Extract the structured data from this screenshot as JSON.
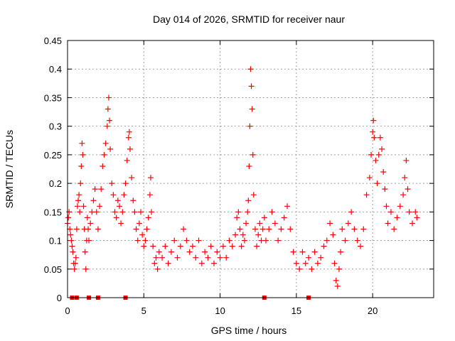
{
  "chart_data": {
    "type": "scatter",
    "title": "Day 014 of 2026, SRMTID for receiver naur",
    "xlabel": "GPS time / hours",
    "ylabel": "SRMTID / TECUs",
    "xlim": [
      0,
      24
    ],
    "ylim": [
      0,
      0.45
    ],
    "x_ticks": [
      0,
      5,
      10,
      15,
      20
    ],
    "x_tick_labels": [
      "0",
      "5",
      "10",
      "15",
      "20"
    ],
    "y_ticks": [
      0,
      0.05,
      0.1,
      0.15,
      0.2,
      0.25,
      0.3,
      0.35,
      0.4,
      0.45
    ],
    "y_tick_labels": [
      "0",
      "0.05",
      "0.1",
      "0.15",
      "0.2",
      "0.25",
      "0.3",
      "0.35",
      "0.4",
      "0.45"
    ],
    "grid": true,
    "marker": "+",
    "color": "#ff0000",
    "series": [
      {
        "name": "SRMTID",
        "points": [
          [
            0.0,
            0.13
          ],
          [
            0.05,
            0.14
          ],
          [
            0.1,
            0.15
          ],
          [
            0.15,
            0.12
          ],
          [
            0.2,
            0.11
          ],
          [
            0.25,
            0.1
          ],
          [
            0.3,
            0.09
          ],
          [
            0.35,
            0.08
          ],
          [
            0.4,
            0.06
          ],
          [
            0.45,
            0.05
          ],
          [
            0.5,
            0.06
          ],
          [
            0.55,
            0.07
          ],
          [
            0.6,
            0.12
          ],
          [
            0.65,
            0.16
          ],
          [
            0.7,
            0.17
          ],
          [
            0.75,
            0.18
          ],
          [
            0.8,
            0.15
          ],
          [
            0.85,
            0.2
          ],
          [
            0.9,
            0.23
          ],
          [
            0.95,
            0.27
          ],
          [
            1.0,
            0.25
          ],
          [
            1.05,
            0.16
          ],
          [
            1.1,
            0.12
          ],
          [
            1.15,
            0.08
          ],
          [
            1.2,
            0.05
          ],
          [
            1.25,
            0.1
          ],
          [
            1.3,
            0.14
          ],
          [
            1.35,
            0.12
          ],
          [
            1.4,
            0.1
          ],
          [
            1.5,
            0.13
          ],
          [
            1.6,
            0.15
          ],
          [
            1.7,
            0.17
          ],
          [
            1.8,
            0.19
          ],
          [
            1.9,
            0.15
          ],
          [
            2.0,
            0.12
          ],
          [
            2.1,
            0.16
          ],
          [
            2.2,
            0.19
          ],
          [
            2.3,
            0.23
          ],
          [
            2.4,
            0.25
          ],
          [
            2.5,
            0.27
          ],
          [
            2.6,
            0.3
          ],
          [
            2.65,
            0.33
          ],
          [
            2.7,
            0.35
          ],
          [
            2.75,
            0.31
          ],
          [
            2.8,
            0.26
          ],
          [
            2.9,
            0.2
          ],
          [
            3.0,
            0.18
          ],
          [
            3.1,
            0.15
          ],
          [
            3.2,
            0.14
          ],
          [
            3.3,
            0.17
          ],
          [
            3.4,
            0.16
          ],
          [
            3.5,
            0.13
          ],
          [
            3.6,
            0.15
          ],
          [
            3.7,
            0.18
          ],
          [
            3.8,
            0.2
          ],
          [
            3.9,
            0.24
          ],
          [
            4.0,
            0.28
          ],
          [
            4.05,
            0.29
          ],
          [
            4.1,
            0.26
          ],
          [
            4.2,
            0.21
          ],
          [
            4.3,
            0.17
          ],
          [
            4.4,
            0.15
          ],
          [
            4.5,
            0.12
          ],
          [
            4.6,
            0.1
          ],
          [
            4.7,
            0.13
          ],
          [
            4.8,
            0.15
          ],
          [
            4.9,
            0.11
          ],
          [
            5.0,
            0.09
          ],
          [
            5.1,
            0.1
          ],
          [
            5.2,
            0.12
          ],
          [
            5.3,
            0.14
          ],
          [
            5.4,
            0.18
          ],
          [
            5.45,
            0.21
          ],
          [
            5.5,
            0.15
          ],
          [
            5.6,
            0.09
          ],
          [
            5.7,
            0.06
          ],
          [
            5.8,
            0.07
          ],
          [
            5.9,
            0.05
          ],
          [
            6.0,
            0.08
          ],
          [
            6.2,
            0.07
          ],
          [
            6.4,
            0.09
          ],
          [
            6.6,
            0.06
          ],
          [
            6.8,
            0.08
          ],
          [
            7.0,
            0.1
          ],
          [
            7.2,
            0.07
          ],
          [
            7.4,
            0.09
          ],
          [
            7.6,
            0.12
          ],
          [
            7.8,
            0.1
          ],
          [
            8.0,
            0.08
          ],
          [
            8.2,
            0.09
          ],
          [
            8.4,
            0.07
          ],
          [
            8.6,
            0.1
          ],
          [
            8.8,
            0.06
          ],
          [
            9.0,
            0.08
          ],
          [
            9.2,
            0.07
          ],
          [
            9.4,
            0.09
          ],
          [
            9.6,
            0.06
          ],
          [
            9.8,
            0.08
          ],
          [
            10.0,
            0.07
          ],
          [
            10.2,
            0.09
          ],
          [
            10.4,
            0.07
          ],
          [
            10.6,
            0.1
          ],
          [
            10.8,
            0.09
          ],
          [
            11.0,
            0.11
          ],
          [
            11.1,
            0.14
          ],
          [
            11.2,
            0.15
          ],
          [
            11.3,
            0.12
          ],
          [
            11.4,
            0.09
          ],
          [
            11.5,
            0.11
          ],
          [
            11.6,
            0.1
          ],
          [
            11.7,
            0.13
          ],
          [
            11.8,
            0.15
          ],
          [
            11.85,
            0.17
          ],
          [
            11.9,
            0.23
          ],
          [
            11.95,
            0.3
          ],
          [
            12.0,
            0.4
          ],
          [
            12.05,
            0.37
          ],
          [
            12.1,
            0.33
          ],
          [
            12.15,
            0.25
          ],
          [
            12.2,
            0.18
          ],
          [
            12.3,
            0.12
          ],
          [
            12.4,
            0.09
          ],
          [
            12.5,
            0.11
          ],
          [
            12.6,
            0.13
          ],
          [
            12.7,
            0.1
          ],
          [
            12.8,
            0.12
          ],
          [
            12.9,
            0.14
          ],
          [
            13.0,
            0.1
          ],
          [
            13.2,
            0.12
          ],
          [
            13.4,
            0.15
          ],
          [
            13.6,
            0.13
          ],
          [
            13.8,
            0.1
          ],
          [
            14.0,
            0.12
          ],
          [
            14.2,
            0.14
          ],
          [
            14.4,
            0.16
          ],
          [
            14.6,
            0.12
          ],
          [
            14.8,
            0.08
          ],
          [
            15.0,
            0.06
          ],
          [
            15.2,
            0.05
          ],
          [
            15.4,
            0.08
          ],
          [
            15.6,
            0.06
          ],
          [
            15.8,
            0.07
          ],
          [
            16.0,
            0.05
          ],
          [
            16.2,
            0.08
          ],
          [
            16.4,
            0.06
          ],
          [
            16.6,
            0.07
          ],
          [
            16.8,
            0.09
          ],
          [
            17.0,
            0.1
          ],
          [
            17.2,
            0.13
          ],
          [
            17.4,
            0.11
          ],
          [
            17.5,
            0.06
          ],
          [
            17.6,
            0.03
          ],
          [
            17.7,
            0.02
          ],
          [
            17.8,
            0.05
          ],
          [
            17.9,
            0.08
          ],
          [
            18.0,
            0.12
          ],
          [
            18.2,
            0.1
          ],
          [
            18.4,
            0.13
          ],
          [
            18.6,
            0.15
          ],
          [
            18.8,
            0.12
          ],
          [
            19.0,
            0.1
          ],
          [
            19.2,
            0.09
          ],
          [
            19.4,
            0.12
          ],
          [
            19.6,
            0.18
          ],
          [
            19.8,
            0.21
          ],
          [
            19.9,
            0.25
          ],
          [
            20.0,
            0.29
          ],
          [
            20.05,
            0.31
          ],
          [
            20.1,
            0.28
          ],
          [
            20.2,
            0.24
          ],
          [
            20.3,
            0.2
          ],
          [
            20.4,
            0.25
          ],
          [
            20.5,
            0.28
          ],
          [
            20.6,
            0.26
          ],
          [
            20.7,
            0.22
          ],
          [
            20.8,
            0.19
          ],
          [
            20.9,
            0.16
          ],
          [
            21.0,
            0.13
          ],
          [
            21.2,
            0.15
          ],
          [
            21.4,
            0.12
          ],
          [
            21.6,
            0.14
          ],
          [
            21.8,
            0.16
          ],
          [
            22.0,
            0.18
          ],
          [
            22.1,
            0.21
          ],
          [
            22.2,
            0.24
          ],
          [
            22.3,
            0.19
          ],
          [
            22.4,
            0.15
          ],
          [
            22.6,
            0.13
          ],
          [
            22.8,
            0.15
          ],
          [
            22.9,
            0.14
          ]
        ],
        "zero_points": [
          0.3,
          0.6,
          1.4,
          2.0,
          3.8,
          12.9,
          15.8
        ]
      }
    ]
  }
}
